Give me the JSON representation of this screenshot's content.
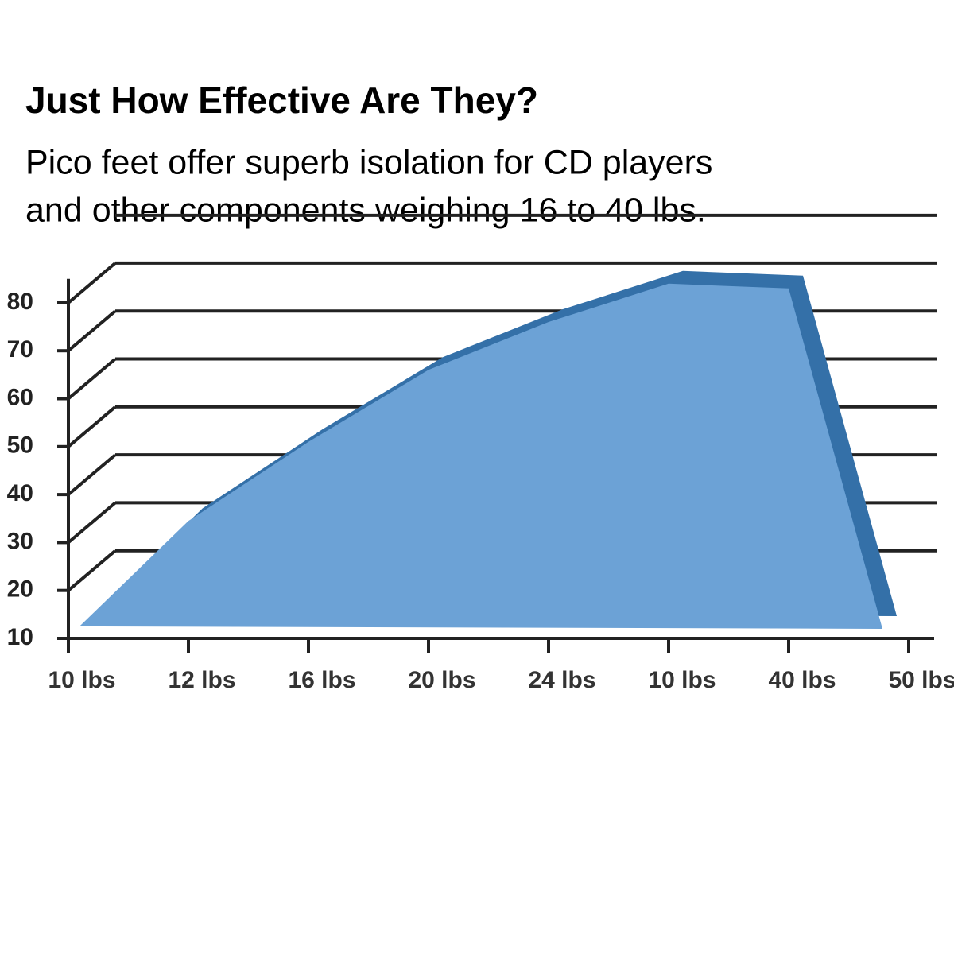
{
  "chart_data": {
    "type": "area",
    "title": "Just How Effective Are They?",
    "subtitle": [
      "Pico feet offer superb isolation for CD players",
      "and other components weighing 16 to 40 lbs."
    ],
    "categories": [
      "10 lbs",
      "12 lbs",
      "16 lbs",
      "20 lbs",
      "24 lbs",
      "10 lbs",
      "40 lbs",
      "50 lbs"
    ],
    "values": [
      12.5,
      34.5,
      51,
      66,
      76,
      84,
      83,
      12
    ],
    "color": "#6ca2d6",
    "depth_color": "#3470a8",
    "ylim": [
      10,
      85
    ],
    "yticks": [
      10,
      20,
      30,
      40,
      50,
      60,
      70,
      80
    ],
    "grid": true
  }
}
